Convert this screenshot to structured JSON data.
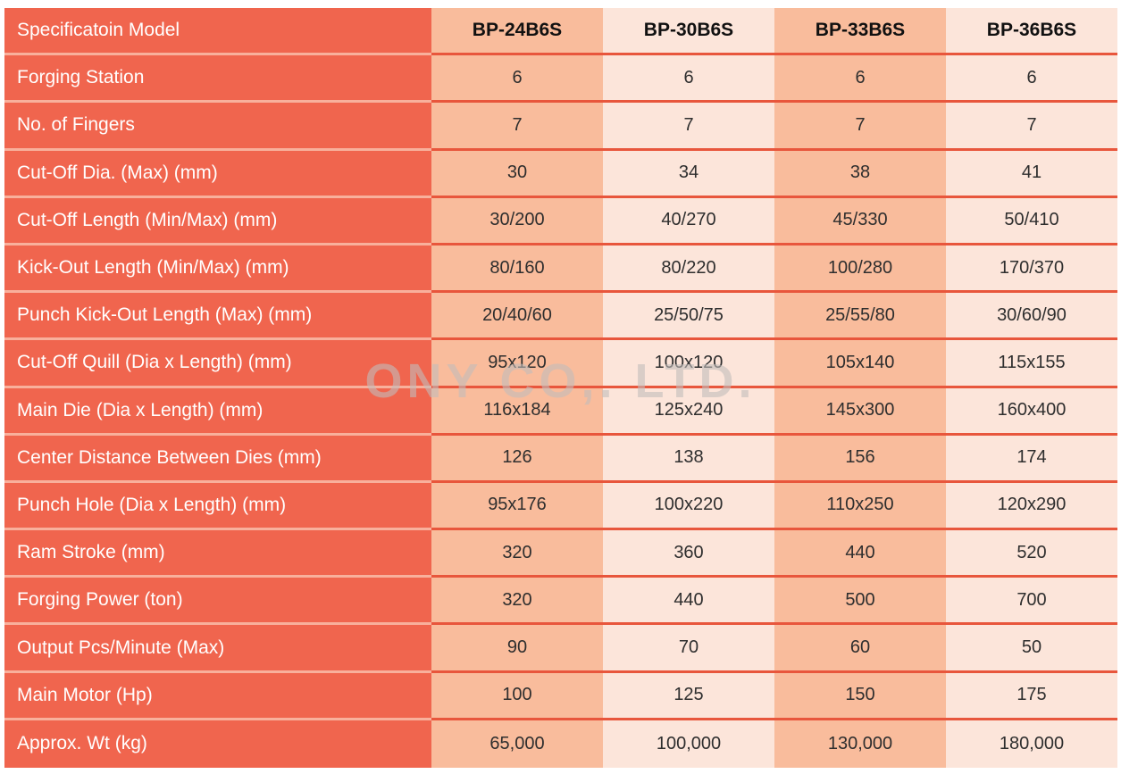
{
  "table": {
    "header": {
      "label": "Specificatoin Model",
      "models": [
        "BP-24B6S",
        "BP-30B6S",
        "BP-33B6S",
        "BP-36B6S"
      ]
    },
    "rows": [
      {
        "label": "Forging Station",
        "values": [
          "6",
          "6",
          "6",
          "6"
        ]
      },
      {
        "label": "No. of Fingers",
        "values": [
          "7",
          "7",
          "7",
          "7"
        ]
      },
      {
        "label": "Cut-Off Dia. (Max) (mm)",
        "values": [
          "30",
          "34",
          "38",
          "41"
        ]
      },
      {
        "label": "Cut-Off Length (Min/Max) (mm)",
        "values": [
          "30/200",
          "40/270",
          "45/330",
          "50/410"
        ]
      },
      {
        "label": "Kick-Out Length (Min/Max) (mm)",
        "values": [
          "80/160",
          "80/220",
          "100/280",
          "170/370"
        ]
      },
      {
        "label": "Punch Kick-Out Length (Max) (mm)",
        "values": [
          "20/40/60",
          "25/50/75",
          "25/55/80",
          "30/60/90"
        ]
      },
      {
        "label": "Cut-Off Quill (Dia x Length) (mm)",
        "values": [
          "95x120",
          "100x120",
          "105x140",
          "115x155"
        ]
      },
      {
        "label": "Main Die (Dia x Length) (mm)",
        "values": [
          "116x184",
          "125x240",
          "145x300",
          "160x400"
        ]
      },
      {
        "label": "Center Distance Between Dies (mm)",
        "values": [
          "126",
          "138",
          "156",
          "174"
        ]
      },
      {
        "label": "Punch Hole (Dia x Length) (mm)",
        "values": [
          "95x176",
          "100x220",
          "110x250",
          "120x290"
        ]
      },
      {
        "label": "Ram Stroke (mm)",
        "values": [
          "320",
          "360",
          "440",
          "520"
        ]
      },
      {
        "label": "Forging Power (ton)",
        "values": [
          "320",
          "440",
          "500",
          "700"
        ]
      },
      {
        "label": "Output Pcs/Minute (Max)",
        "values": [
          "90",
          "70",
          "60",
          "50"
        ]
      },
      {
        "label": "Main Motor (Hp)",
        "values": [
          "100",
          "125",
          "150",
          "175"
        ]
      },
      {
        "label": "Approx. Wt (kg)",
        "values": [
          "65,000",
          "100,000",
          "130,000",
          "180,000"
        ]
      }
    ]
  },
  "watermark": "ONY CO,. LTD.",
  "colors": {
    "label_bg": "#f0654e",
    "col_dark": "#f9bc9c",
    "col_light": "#fce5da",
    "divider_value": "#e8563c",
    "divider_label": "#f8b09c",
    "value_text": "#2e2e2e",
    "header_text": "#111111",
    "label_text": "#ffffff",
    "page_bg": "#ffffff"
  }
}
